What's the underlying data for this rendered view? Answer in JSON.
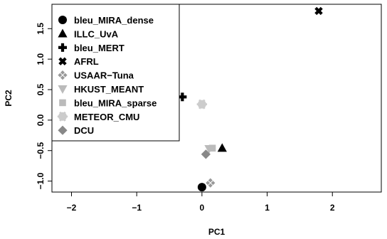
{
  "chart_data": {
    "type": "scatter",
    "xlabel": "PC1",
    "ylabel": "PC2",
    "xlim": [
      -2.3,
      2.75
    ],
    "ylim": [
      -1.18,
      1.9
    ],
    "x_ticks": [
      -2,
      -1,
      0,
      1,
      2
    ],
    "y_ticks": [
      -1.0,
      -0.5,
      0.0,
      0.5,
      1.0,
      1.5
    ],
    "x_tick_labels": [
      "−2",
      "−1",
      "0",
      "1",
      "2"
    ],
    "y_tick_labels": [
      "−1.0",
      "−0.5",
      "0.0",
      "0.5",
      "1.0",
      "1.5"
    ],
    "grid": false,
    "legend_position": "top-left",
    "series": [
      {
        "name": "bleu_MIRA_dense",
        "marker": "circle",
        "color": "#000000",
        "x": 0.0,
        "y": -1.1
      },
      {
        "name": "ILLC_UvA",
        "marker": "triangle-up",
        "color": "#000000",
        "x": 0.31,
        "y": -0.46
      },
      {
        "name": "bleu_MERT",
        "marker": "heavy-plus",
        "color": "#000000",
        "x": -0.3,
        "y": 0.38
      },
      {
        "name": "AFRL",
        "marker": "heavy-x",
        "color": "#000000",
        "x": 1.79,
        "y": 1.79
      },
      {
        "name": "USAAR−Tuna",
        "marker": "diamond-cross",
        "color": "#999999",
        "x": 0.13,
        "y": -1.03
      },
      {
        "name": "HKUST_MEANT",
        "marker": "triangle-down",
        "color": "#bbbbbb",
        "x": 0.11,
        "y": -0.47
      },
      {
        "name": "bleu_MIRA_sparse",
        "marker": "square",
        "color": "#bbbbbb",
        "x": 0.16,
        "y": -0.46
      },
      {
        "name": "METEOR_CMU",
        "marker": "asterisk-circle",
        "color": "#cccccc",
        "x": 0.0,
        "y": 0.26
      },
      {
        "name": "DCU",
        "marker": "diamond",
        "color": "#888888",
        "x": 0.06,
        "y": -0.56
      }
    ]
  }
}
